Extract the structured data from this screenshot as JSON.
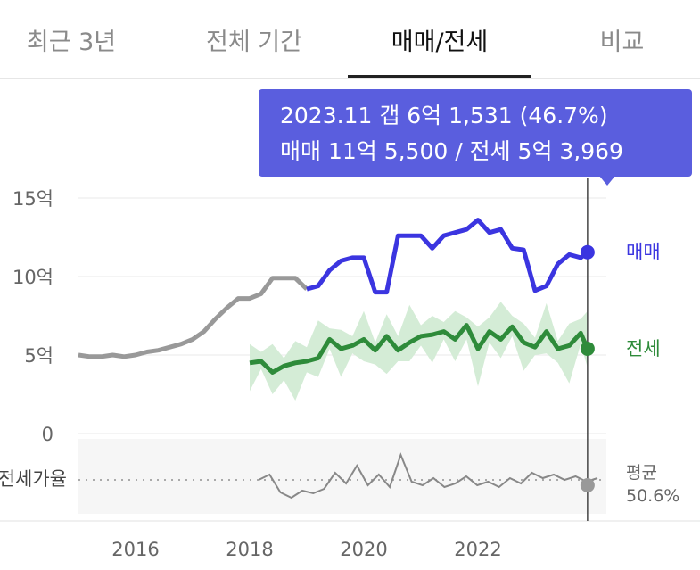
{
  "tabs": [
    {
      "label": "최근 3년",
      "active": false
    },
    {
      "label": "전체 기간",
      "active": false
    },
    {
      "label": "매매/전세",
      "active": true
    },
    {
      "label": "비교",
      "active": false
    }
  ],
  "tooltip": {
    "line1": "2023.11  갭 6억 1,531 (46.7%)",
    "line2": "매매 11억 5,500 / 전세 5억 3,969"
  },
  "chart_data": {
    "type": "line",
    "y_unit": "억",
    "ylim": [
      0,
      15
    ],
    "y_ticks": [
      {
        "value": 15,
        "label": "15억"
      },
      {
        "value": 10,
        "label": "10억"
      },
      {
        "value": 5,
        "label": "5억"
      },
      {
        "value": 0,
        "label": "0"
      }
    ],
    "x_ticks": [
      {
        "value": 2016,
        "label": "2016"
      },
      {
        "value": 2018,
        "label": "2018"
      },
      {
        "value": 2020,
        "label": "2020"
      },
      {
        "value": 2022,
        "label": "2022"
      }
    ],
    "xlim": [
      2015.0,
      2024.25
    ],
    "grid": true,
    "series": [
      {
        "name": "매매",
        "color": "#3b35e0",
        "end_value": 11.55,
        "x": [
          2015.0,
          2015.2,
          2015.4,
          2015.6,
          2015.8,
          2016.0,
          2016.2,
          2016.4,
          2016.6,
          2016.8,
          2017.0,
          2017.2,
          2017.4,
          2017.6,
          2017.8,
          2018.0,
          2018.2,
          2018.4,
          2018.6,
          2018.8,
          2019.0,
          2019.2,
          2019.4,
          2019.6,
          2019.8,
          2020.0,
          2020.2,
          2020.4,
          2020.6,
          2020.8,
          2021.0,
          2021.2,
          2021.4,
          2021.6,
          2021.8,
          2022.0,
          2022.2,
          2022.4,
          2022.6,
          2022.8,
          2023.0,
          2023.2,
          2023.4,
          2023.6,
          2023.8,
          2023.92
        ],
        "y": [
          5.0,
          4.9,
          4.9,
          5.0,
          4.9,
          5.0,
          5.2,
          5.3,
          5.5,
          5.7,
          6.0,
          6.5,
          7.3,
          8.0,
          8.6,
          8.6,
          8.9,
          9.9,
          9.9,
          9.9,
          9.2,
          9.4,
          10.4,
          11.0,
          11.2,
          11.2,
          9.0,
          9.0,
          12.6,
          12.6,
          12.6,
          11.8,
          12.6,
          12.8,
          13.0,
          13.6,
          12.8,
          13.0,
          11.8,
          11.7,
          9.1,
          9.4,
          10.8,
          11.4,
          11.2,
          11.55
        ],
        "solid_from_x": 2019.0
      },
      {
        "name": "전세",
        "color": "#2e8b3a",
        "end_value": 5.4,
        "x": [
          2018.0,
          2018.2,
          2018.4,
          2018.6,
          2018.8,
          2019.0,
          2019.2,
          2019.4,
          2019.6,
          2019.8,
          2020.0,
          2020.2,
          2020.4,
          2020.6,
          2020.8,
          2021.0,
          2021.2,
          2021.4,
          2021.6,
          2021.8,
          2022.0,
          2022.2,
          2022.4,
          2022.6,
          2022.8,
          2023.0,
          2023.2,
          2023.4,
          2023.6,
          2023.8,
          2023.92
        ],
        "y": [
          4.5,
          4.6,
          3.9,
          4.3,
          4.5,
          4.6,
          4.8,
          6.0,
          5.4,
          5.6,
          6.0,
          5.3,
          6.2,
          5.3,
          5.8,
          6.2,
          6.3,
          6.5,
          6.0,
          6.9,
          5.4,
          6.5,
          6.0,
          6.8,
          5.8,
          5.5,
          6.5,
          5.4,
          5.6,
          6.4,
          5.4
        ]
      }
    ],
    "sub_panel": {
      "label": "전세가율",
      "average_label": "평균",
      "average_value": "50.6%"
    }
  }
}
